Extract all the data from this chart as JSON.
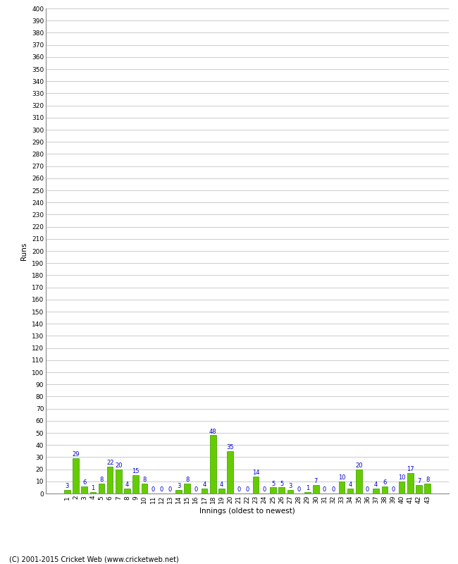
{
  "title": "",
  "xlabel": "Innings (oldest to newest)",
  "ylabel": "Runs",
  "categories": [
    1,
    2,
    3,
    4,
    5,
    6,
    7,
    8,
    9,
    10,
    11,
    12,
    13,
    14,
    15,
    16,
    17,
    18,
    19,
    20,
    21,
    22,
    23,
    24,
    25,
    26,
    27,
    28,
    29,
    30,
    31,
    32,
    33,
    34,
    35,
    36,
    37,
    38,
    39,
    40,
    41,
    42,
    43
  ],
  "values": [
    3,
    29,
    6,
    1,
    8,
    22,
    20,
    4,
    15,
    8,
    0,
    0,
    0,
    3,
    8,
    0,
    4,
    48,
    4,
    35,
    0,
    0,
    14,
    0,
    5,
    5,
    3,
    0,
    1,
    7,
    0,
    0,
    10,
    4,
    20,
    0,
    4,
    6,
    0,
    10,
    17,
    7,
    8
  ],
  "bar_color": "#66cc00",
  "bar_edge_color": "#339900",
  "label_color": "#0000cc",
  "label_fontsize": 6.0,
  "ylabel_fontsize": 7.5,
  "xlabel_fontsize": 7.5,
  "tick_fontsize": 6.5,
  "footer": "(C) 2001-2015 Cricket Web (www.cricketweb.net)",
  "footer_fontsize": 7,
  "ylim": [
    0,
    400
  ],
  "yticks": [
    0,
    10,
    20,
    30,
    40,
    50,
    60,
    70,
    80,
    90,
    100,
    110,
    120,
    130,
    140,
    150,
    160,
    170,
    180,
    190,
    200,
    210,
    220,
    230,
    240,
    250,
    260,
    270,
    280,
    290,
    300,
    310,
    320,
    330,
    340,
    350,
    360,
    370,
    380,
    390,
    400
  ],
  "background_color": "#ffffff",
  "grid_color": "#cccccc"
}
